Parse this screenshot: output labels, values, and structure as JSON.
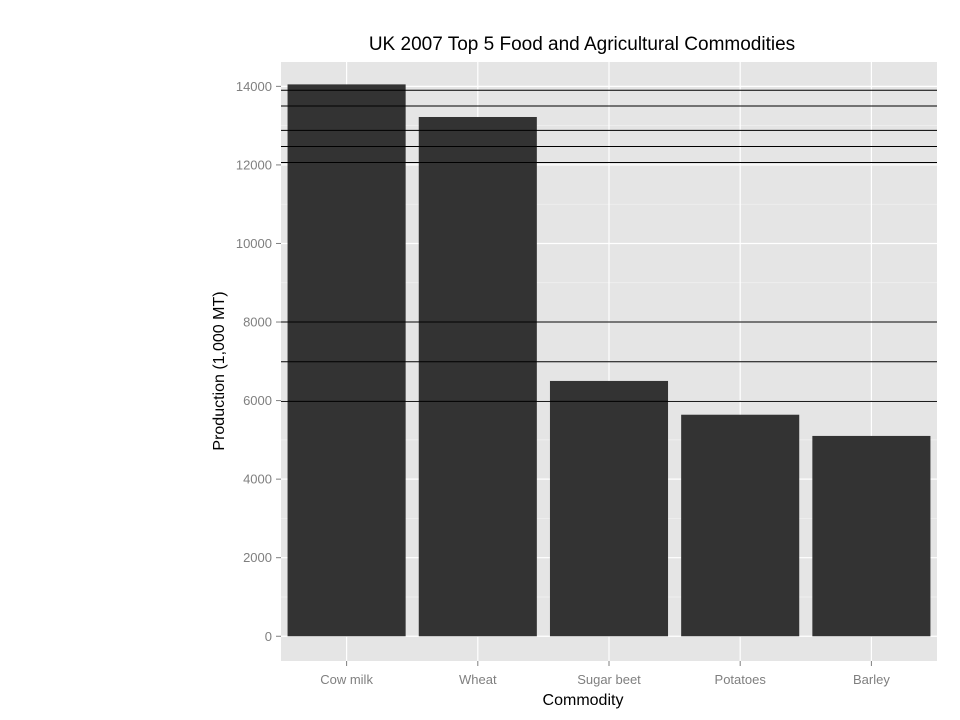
{
  "chart_data": {
    "type": "bar",
    "title": "UK 2007 Top 5 Food and Agricultural Commodities",
    "xlabel": "Commodity",
    "ylabel": "Production (1,000 MT)",
    "categories": [
      "Cow milk",
      "Wheat",
      "Sugar beet",
      "Potatoes",
      "Barley"
    ],
    "values": [
      14050,
      13220,
      6500,
      5640,
      5100
    ],
    "ylim": [
      -630,
      14620
    ],
    "yticks": [
      0,
      2000,
      4000,
      6000,
      8000,
      10000,
      12000,
      14000
    ],
    "ytick_labels": [
      "0",
      "2000",
      "4000",
      "6000",
      "8000",
      "10000",
      "12000",
      "14000"
    ],
    "reference_lines": [
      13900,
      13500,
      12880,
      12470,
      12060,
      8000,
      6990,
      5980
    ],
    "grid": true,
    "legend": "none",
    "colors": {
      "panel_background": "#e5e5e5",
      "grid_major": "#ffffff",
      "grid_minor": "#f2f2f2",
      "bar_fill": "#333333",
      "reference_line": "#000000",
      "tick_label": "#7f7f7f"
    }
  }
}
